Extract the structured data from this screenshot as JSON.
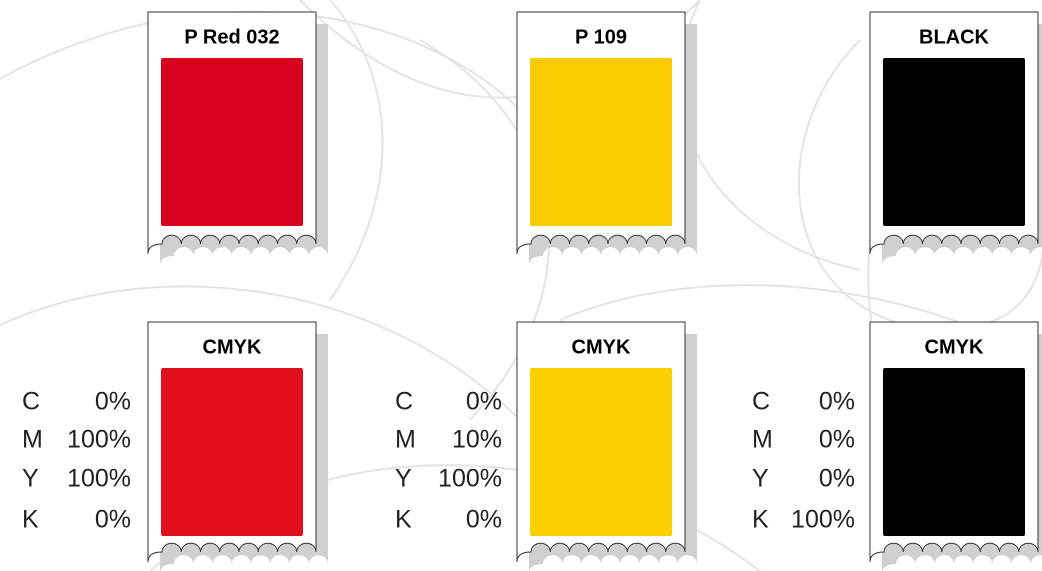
{
  "swatches": [
    {
      "label": "P Red 032",
      "color": "#d9001e"
    },
    {
      "label": "P 109",
      "color": "#f9cb00"
    },
    {
      "label": "BLACK",
      "color": "#000000"
    }
  ],
  "cmyk": [
    {
      "label": "CMYK",
      "color": "#e20e19",
      "rows": [
        [
          "C",
          "0%"
        ],
        [
          "M",
          "100%"
        ],
        [
          "Y",
          "100%"
        ],
        [
          "K",
          "0%"
        ]
      ]
    },
    {
      "label": "CMYK",
      "color": "#fccf00",
      "rows": [
        [
          "C",
          "0%"
        ],
        [
          "M",
          "10%"
        ],
        [
          "Y",
          "100%"
        ],
        [
          "K",
          "0%"
        ]
      ]
    },
    {
      "label": "CMYK",
      "color": "#000000",
      "rows": [
        [
          "C",
          "0%"
        ],
        [
          "M",
          "0%"
        ],
        [
          "Y",
          "0%"
        ],
        [
          "K",
          "100%"
        ]
      ]
    }
  ]
}
